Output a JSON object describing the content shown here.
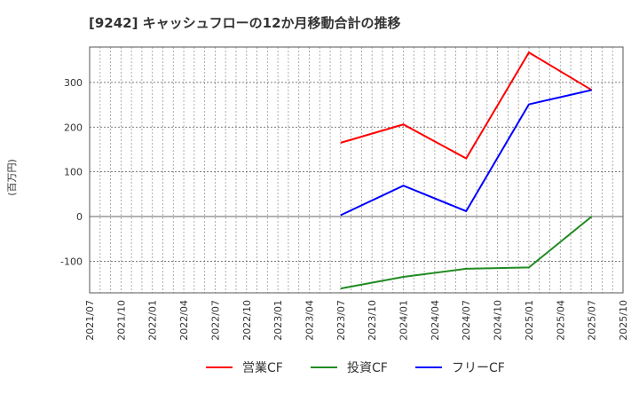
{
  "chart_data": {
    "type": "line",
    "title": "[9242]  キャッシュフローの12か月移動合計の推移",
    "ylabel": "(百万円)",
    "xlabel": "",
    "ylim": [
      -175,
      380
    ],
    "yticks": [
      -100,
      0,
      100,
      200,
      300
    ],
    "xticks": [
      "2021/07",
      "2021/10",
      "2022/01",
      "2022/04",
      "2022/07",
      "2022/10",
      "2023/01",
      "2023/04",
      "2023/07",
      "2023/10",
      "2024/01",
      "2024/04",
      "2024/07",
      "2024/10",
      "2025/01",
      "2025/04",
      "2025/07",
      "2025/10"
    ],
    "x": [
      "2023/07",
      "2024/01",
      "2024/07",
      "2025/01",
      "2025/07"
    ],
    "series": [
      {
        "name": "営業CF",
        "color": "#ff0000",
        "values": [
          165,
          206,
          130,
          367,
          283
        ]
      },
      {
        "name": "投資CF",
        "color": "#228b22",
        "values": [
          -161,
          -135,
          -117,
          -114,
          0
        ]
      },
      {
        "name": "フリーCF",
        "color": "#0000ff",
        "values": [
          3,
          69,
          12,
          251,
          283
        ]
      }
    ],
    "grid": true,
    "legend": "bottom"
  }
}
